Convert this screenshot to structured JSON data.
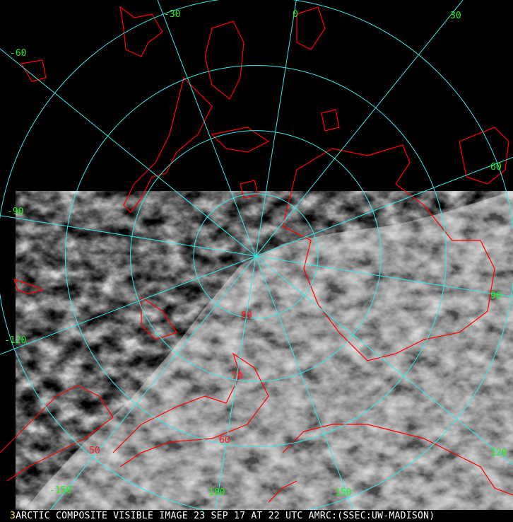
{
  "caption": {
    "panel_number": "3",
    "text": "ARCTIC COMPOSITE VISIBLE IMAGE 23 SEP 17 AT 22 UTC AMRC:(SSEC:UW-MADISON)"
  },
  "graticule": {
    "meridians_deg": [
      0,
      30,
      60,
      90,
      120,
      150,
      180,
      -150,
      -120,
      -90,
      -60,
      -30
    ],
    "parallels_deg": [
      80,
      70,
      60,
      50
    ],
    "color": "#33e6e6"
  },
  "longitude_labels": [
    "-30",
    "0",
    "30",
    "-60",
    "60",
    "-90",
    "90",
    "-120",
    "120",
    "-150",
    "180",
    "150"
  ],
  "latitude_labels": [
    "80",
    "70",
    "60",
    "50"
  ],
  "colors": {
    "coastline": "#ff0000",
    "longitude_label": "#22ee22",
    "latitude_label": "#ff1a1a",
    "caption_text": "#ffffff",
    "panel_number": "#ffee22"
  },
  "projection": "north polar stereographic"
}
